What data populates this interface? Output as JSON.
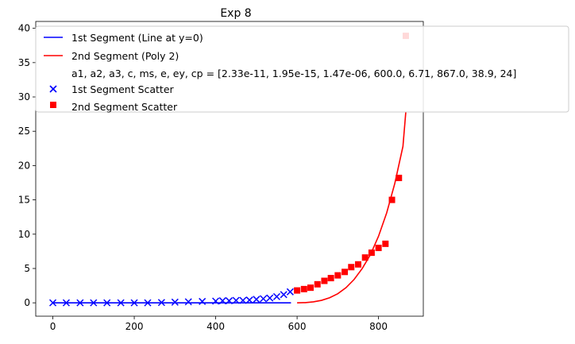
{
  "chart_data": {
    "type": "scatter",
    "title": "Exp 8",
    "xlabel": "",
    "ylabel": "",
    "xlim": [
      -42,
      910
    ],
    "ylim": [
      -1.95,
      41
    ],
    "x_ticks": [
      0,
      200,
      400,
      600,
      800
    ],
    "y_ticks": [
      0,
      5,
      10,
      15,
      20,
      25,
      30,
      35,
      40
    ],
    "legend_position": "top-left",
    "colors": {
      "segment1": "#0000ff",
      "segment2": "#ff0000"
    },
    "series": [
      {
        "name": "1st Segment (Line at y=0)",
        "kind": "line",
        "color": "#0000ff",
        "x": [
          0,
          585
        ],
        "y": [
          0,
          0
        ]
      },
      {
        "name": "2nd Segment (Poly 2)",
        "kind": "line",
        "color": "#ff0000",
        "x": [
          600,
          620,
          640,
          660,
          680,
          700,
          720,
          740,
          760,
          780,
          800,
          820,
          840,
          860,
          867
        ],
        "y": [
          0.0,
          0.03,
          0.14,
          0.36,
          0.74,
          1.33,
          2.2,
          3.4,
          5.0,
          7.0,
          9.7,
          13.1,
          17.4,
          22.8,
          27.8
        ]
      },
      {
        "name": "1st Segment Scatter",
        "kind": "scatter",
        "marker": "x",
        "color": "#0000ff",
        "x": [
          0,
          33,
          67,
          100,
          133,
          167,
          200,
          233,
          267,
          300,
          333,
          367,
          400,
          417,
          433,
          450,
          467,
          483,
          500,
          517,
          533,
          550,
          567,
          583
        ],
        "y": [
          0.0,
          0.0,
          0.0,
          0.0,
          0.0,
          0.0,
          0.0,
          0.0,
          0.05,
          0.1,
          0.15,
          0.2,
          0.25,
          0.3,
          0.3,
          0.35,
          0.35,
          0.4,
          0.5,
          0.6,
          0.7,
          0.9,
          1.2,
          1.6
        ]
      },
      {
        "name": "2nd Segment Scatter",
        "kind": "scatter",
        "marker": "s",
        "color": "#ff0000",
        "x": [
          600,
          617,
          633,
          650,
          667,
          683,
          700,
          717,
          733,
          750,
          767,
          783,
          800,
          817,
          833,
          850,
          867
        ],
        "y": [
          1.8,
          2.0,
          2.2,
          2.7,
          3.2,
          3.6,
          4.0,
          4.5,
          5.2,
          5.6,
          6.6,
          7.3,
          8.0,
          8.6,
          15.0,
          18.2,
          38.9
        ]
      }
    ],
    "legend_note": "a1, a2, a3, c, ms, e, ey, cp = [2.33e-11, 1.95e-15, 1.47e-06, 600.0, 6.71, 867.0, 38.9, 24]"
  }
}
